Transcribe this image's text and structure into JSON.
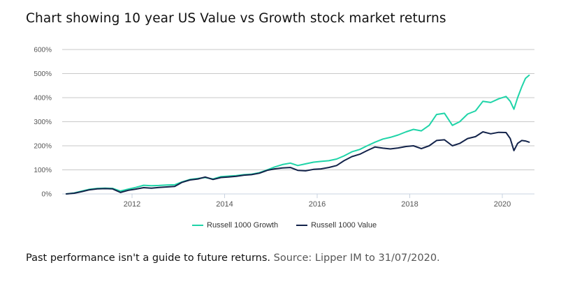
{
  "title": "Chart showing 10 year US Value vs Growth stock market returns",
  "footnote": {
    "main": "Past performance isn't a guide to future returns.",
    "source": "Source: Lipper IM to 31/07/2020."
  },
  "colors": {
    "growth": "#1fd4a8",
    "value": "#13234a",
    "grid": "#c8c8c8",
    "axis": "#c9d3e0"
  },
  "chart_data": {
    "type": "line",
    "title": "Chart showing 10 year US Value vs Growth stock market returns",
    "xlabel": "",
    "ylabel": "",
    "ylim": [
      0,
      600
    ],
    "xlim": [
      2010.5,
      2020.75
    ],
    "grid": true,
    "legend_position": "bottom-center",
    "yticks": [
      0,
      100,
      200,
      300,
      400,
      500,
      600
    ],
    "ytick_labels": [
      "0%",
      "100%",
      "200%",
      "300%",
      "400%",
      "500%",
      "600%"
    ],
    "xticks": [
      2012,
      2014,
      2016,
      2018,
      2020
    ],
    "xtick_labels": [
      "2012",
      "2014",
      "2016",
      "2018",
      "2020"
    ],
    "x": [
      2010.58,
      2010.75,
      2010.92,
      2011.08,
      2011.25,
      2011.42,
      2011.58,
      2011.75,
      2011.92,
      2012.08,
      2012.25,
      2012.42,
      2012.58,
      2012.75,
      2012.92,
      2013.08,
      2013.25,
      2013.42,
      2013.58,
      2013.75,
      2013.92,
      2014.08,
      2014.25,
      2014.42,
      2014.58,
      2014.75,
      2014.92,
      2015.08,
      2015.25,
      2015.42,
      2015.58,
      2015.75,
      2015.92,
      2016.08,
      2016.25,
      2016.42,
      2016.58,
      2016.75,
      2016.92,
      2017.08,
      2017.25,
      2017.42,
      2017.58,
      2017.75,
      2017.92,
      2018.08,
      2018.25,
      2018.42,
      2018.58,
      2018.75,
      2018.92,
      2019.08,
      2019.25,
      2019.42,
      2019.58,
      2019.75,
      2019.92,
      2020.08,
      2020.17,
      2020.25,
      2020.33,
      2020.42,
      2020.5,
      2020.58
    ],
    "series": [
      {
        "name": "Russell 1000 Growth",
        "color": "#1fd4a8",
        "values": [
          0,
          4,
          12,
          19,
          23,
          24,
          23,
          12,
          20,
          27,
          36,
          34,
          35,
          37,
          38,
          50,
          60,
          64,
          68,
          62,
          72,
          74,
          76,
          80,
          82,
          88,
          100,
          112,
          122,
          128,
          118,
          125,
          132,
          135,
          138,
          145,
          158,
          175,
          185,
          200,
          215,
          228,
          235,
          245,
          258,
          268,
          262,
          285,
          330,
          335,
          285,
          300,
          332,
          345,
          385,
          380,
          395,
          405,
          385,
          352,
          400,
          445,
          480,
          493
        ]
      },
      {
        "name": "Russell 1000 Value",
        "color": "#13234a",
        "values": [
          0,
          3,
          10,
          17,
          21,
          22,
          21,
          6,
          15,
          20,
          26,
          24,
          27,
          29,
          31,
          48,
          58,
          62,
          70,
          60,
          68,
          70,
          73,
          78,
          80,
          86,
          98,
          104,
          108,
          110,
          98,
          96,
          102,
          104,
          110,
          118,
          138,
          155,
          165,
          180,
          195,
          190,
          187,
          191,
          197,
          200,
          188,
          200,
          222,
          225,
          200,
          210,
          230,
          238,
          258,
          250,
          256,
          255,
          230,
          180,
          210,
          222,
          220,
          215
        ]
      }
    ]
  }
}
